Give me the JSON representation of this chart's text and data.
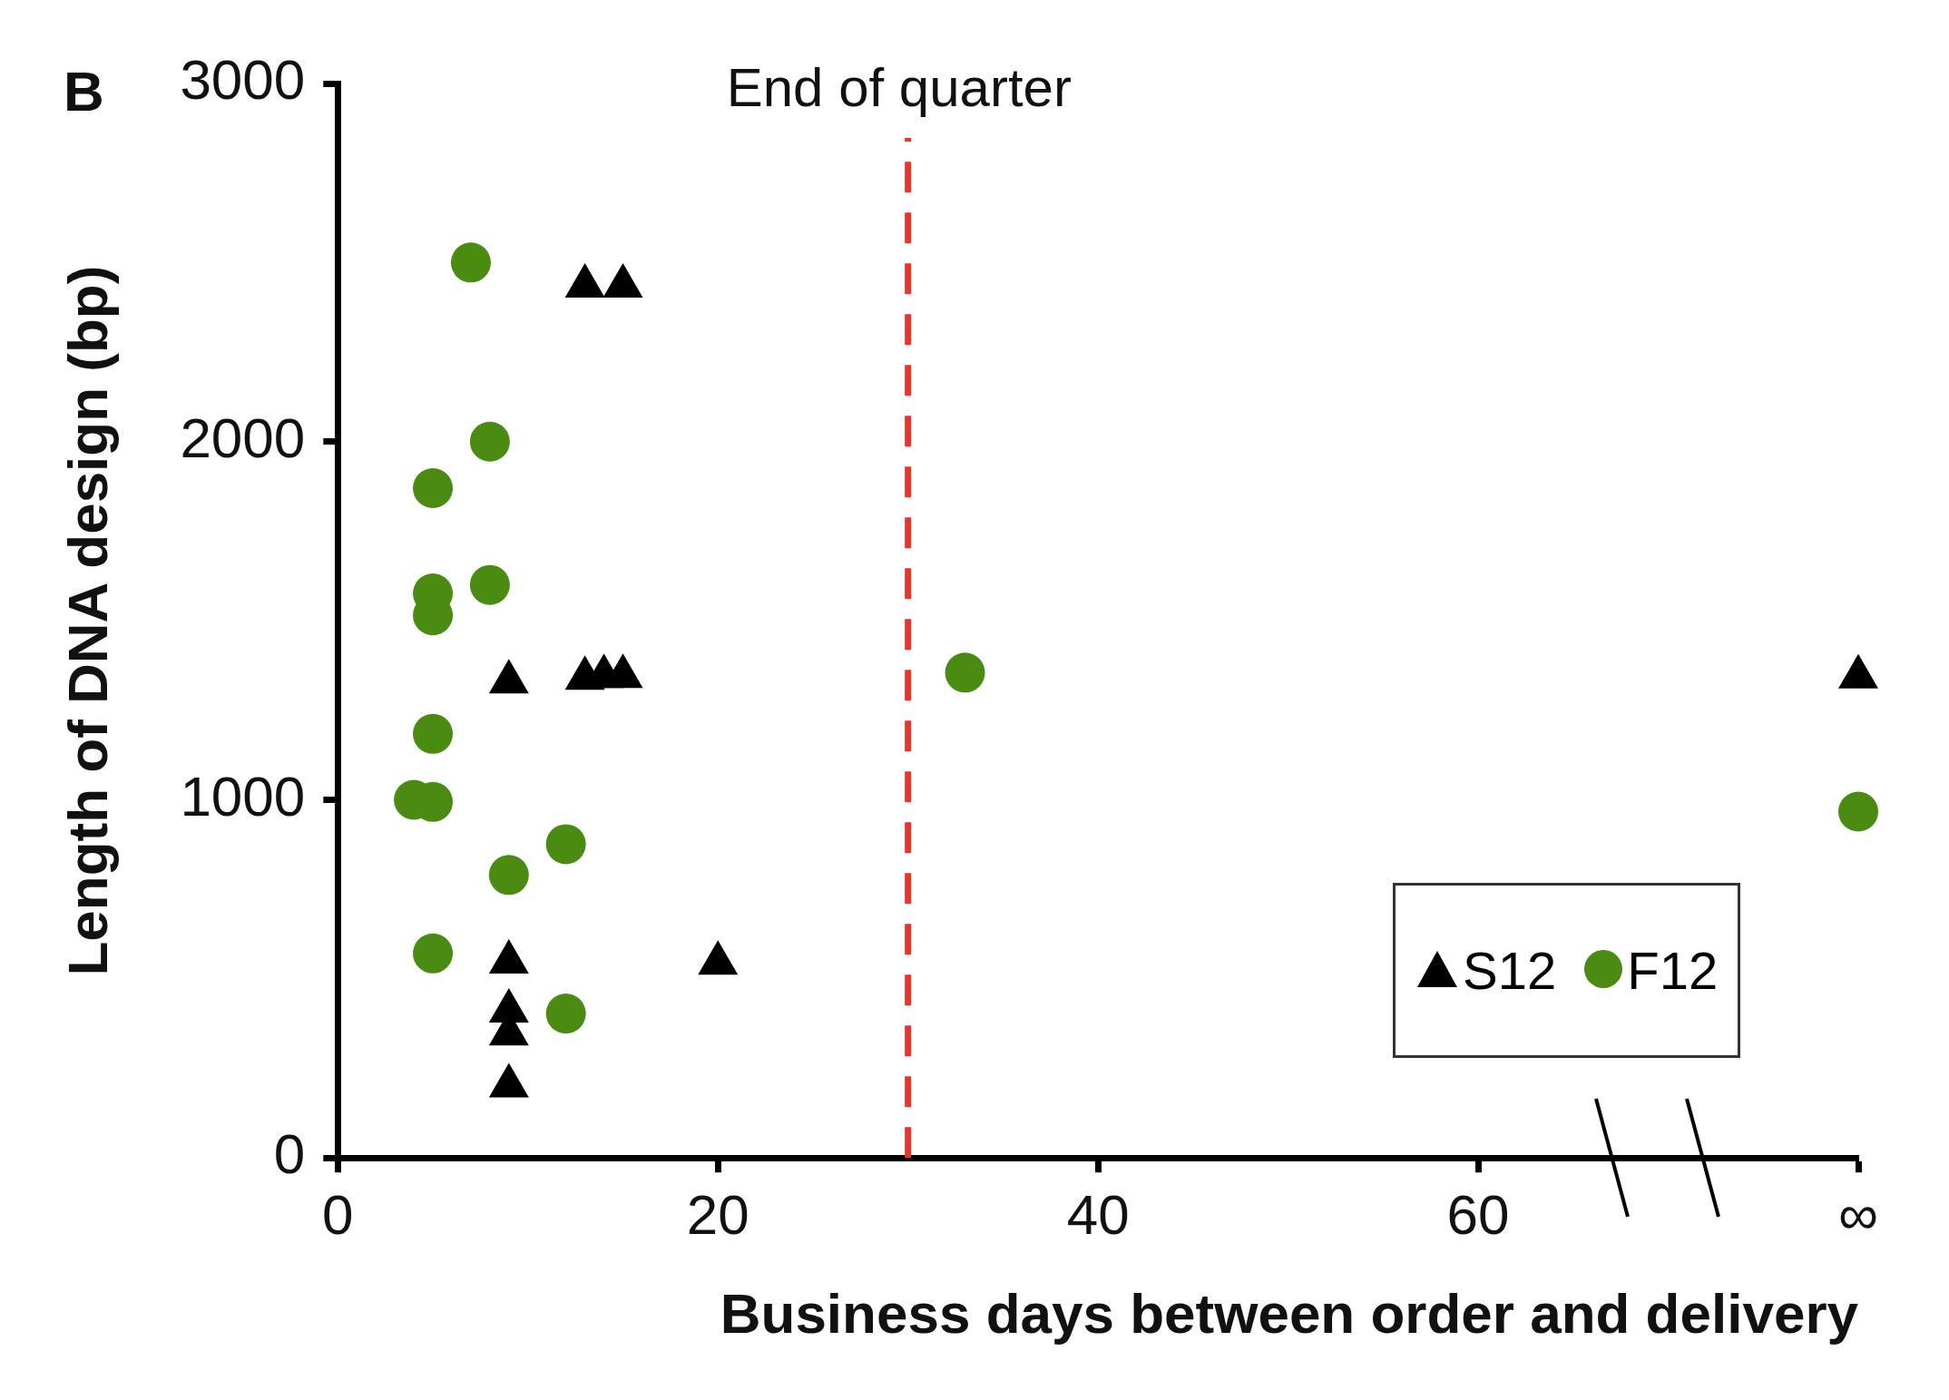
{
  "chart_data": {
    "type": "scatter",
    "xlabel": "Business days between order and delivery",
    "ylabel": "Length of DNA design (bp)",
    "annotations": [
      "B"
    ],
    "xlim": [
      0,
      80
    ],
    "xticks": [
      0,
      20,
      40,
      60,
      {
        "value": 80,
        "label": "∞"
      }
    ],
    "ylim": [
      0,
      3000
    ],
    "yticks": [
      0,
      1000,
      2000,
      3000
    ],
    "grid": false,
    "legend": "bottom right",
    "ref_lines": [
      {
        "axis": "x",
        "value": 30,
        "label": "End of quarter",
        "color": "#e8352b",
        "line_style": "dashed"
      }
    ],
    "series": [
      {
        "name": "S12",
        "color": "#000000",
        "marker": "triangle",
        "x": [
          13,
          15,
          9,
          13,
          14,
          15,
          9,
          9,
          9,
          9,
          20,
          80
        ],
        "values": [
          2450,
          2450,
          1345,
          1355,
          1360,
          1360,
          563,
          426,
          362,
          217,
          560,
          1359
        ]
      },
      {
        "name": "F12",
        "color": "#4a8c12",
        "marker": "circle",
        "x": [
          7,
          8,
          5,
          8,
          5,
          5,
          5,
          4,
          5,
          12,
          9,
          5,
          12,
          33,
          80
        ],
        "values": [
          2500,
          2000,
          1870,
          1600,
          1576,
          1515,
          1184,
          1000,
          994,
          876,
          790,
          571,
          403,
          1355,
          967
        ]
      }
    ]
  }
}
